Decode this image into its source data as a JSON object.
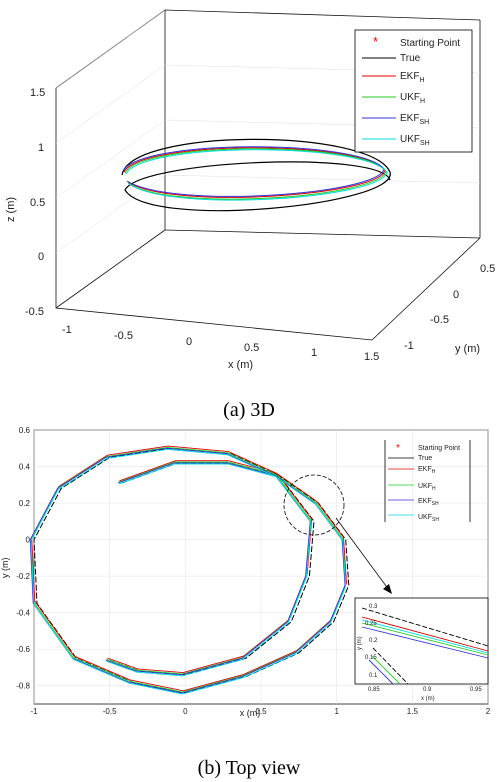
{
  "legend": [
    {
      "label": "Starting Point",
      "color": "#ff0000",
      "marker": "asterisk"
    },
    {
      "label": "True",
      "color": "#000000"
    },
    {
      "label": "EKF",
      "sub": "H",
      "color": "#dd0000"
    },
    {
      "label": "UKF",
      "sub": "H",
      "color": "#22cc22"
    },
    {
      "label": "EKF",
      "sub": "SH",
      "color": "#3333dd"
    },
    {
      "label": "UKF",
      "sub": "SH",
      "color": "#00dddd"
    }
  ],
  "panel_a": {
    "caption": "(a) 3D",
    "xlabel": "x (m)",
    "ylabel": "y (m)",
    "zlabel": "z (m)",
    "x_ticks": [
      "-1",
      "-0.5",
      "0",
      "0.5",
      "1",
      "1.5"
    ],
    "y_ticks": [
      "0.5",
      "0",
      "-0.5",
      "-1"
    ],
    "z_ticks": [
      "1.5",
      "1",
      "0.5",
      "0",
      "-0.5"
    ]
  },
  "panel_b": {
    "caption": "(b) Top view",
    "xlabel": "x (m)",
    "ylabel": "y (m)",
    "x_ticks": [
      "-1",
      "-0.5",
      "0",
      "0.5",
      "1",
      "1.5",
      "2"
    ],
    "y_ticks": [
      "0.6",
      "0.4",
      "0.2",
      "0",
      "-0.2",
      "-0.4",
      "-0.6",
      "-0.8"
    ],
    "inset": {
      "xlabel": "x (m)",
      "ylabel": "y (m)",
      "x_ticks": [
        "0.85",
        "0.9",
        "0.95"
      ],
      "y_ticks": [
        "0.3",
        "0.25",
        "0.2",
        "0.15",
        "0.1"
      ]
    }
  },
  "chart_data": [
    {
      "type": "line",
      "title": "",
      "xlabel": "x (m)",
      "ylabel": "y (m)",
      "zlabel": "z (m)",
      "xlim": [
        -1,
        1.5
      ],
      "ylim": [
        -1,
        0.5
      ],
      "zlim": [
        -0.5,
        1.5
      ],
      "series": [
        {
          "name": "True",
          "shape": "ellipse",
          "x_range": [
            -0.5,
            1.0
          ],
          "y_range": [
            -0.8,
            0.5
          ],
          "z_range": [
            0.45,
            1.0
          ]
        },
        {
          "name": "EKF_H"
        },
        {
          "name": "UKF_H"
        },
        {
          "name": "EKF_SH"
        },
        {
          "name": "UKF_SH"
        }
      ]
    },
    {
      "type": "line",
      "title": "",
      "xlabel": "x (m)",
      "ylabel": "y (m)",
      "xlim": [
        -1,
        2
      ],
      "ylim": [
        -0.9,
        0.6
      ],
      "series": [
        {
          "name": "True",
          "x": [
            -0.42,
            -0.05,
            0.3,
            0.62,
            0.88,
            1.06,
            1.08,
            0.98,
            0.75,
            0.4,
            0.0,
            -0.35,
            -0.72,
            -0.98,
            -1.0,
            -0.82,
            -0.5,
            -0.1,
            0.3,
            0.62,
            0.85,
            0.82,
            0.7,
            0.4,
            0.0,
            -0.3,
            -0.5
          ],
          "y": [
            0.31,
            0.42,
            0.42,
            0.35,
            0.2,
            0.0,
            -0.25,
            -0.45,
            -0.62,
            -0.75,
            -0.84,
            -0.78,
            -0.65,
            -0.35,
            0.0,
            0.28,
            0.45,
            0.5,
            0.47,
            0.35,
            0.1,
            -0.2,
            -0.45,
            -0.65,
            -0.74,
            -0.72,
            -0.66
          ]
        },
        {
          "name": "EKF_H"
        },
        {
          "name": "UKF_H"
        },
        {
          "name": "EKF_SH"
        },
        {
          "name": "UKF_SH"
        }
      ]
    }
  ]
}
